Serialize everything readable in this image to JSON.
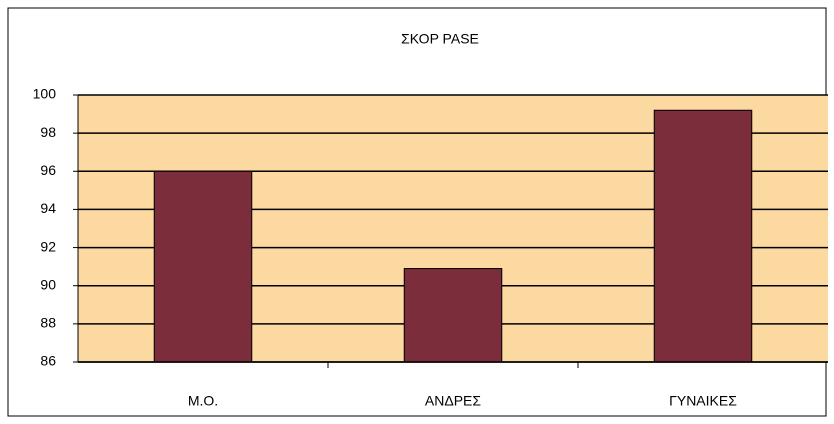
{
  "chart_data": {
    "type": "bar",
    "title": "ΣΚΟΡ PASE",
    "categories": [
      "M.O.",
      "ΑΝΔΡΕΣ",
      "ΓΥΝΑΙΚΕΣ"
    ],
    "values": [
      96,
      90.9,
      99.2
    ],
    "color": "#7b2d3b",
    "ylim": [
      86,
      100
    ],
    "yticks": [
      86,
      88,
      90,
      92,
      94,
      96,
      98,
      100
    ],
    "grid": true,
    "plot_background": "#fcd9a0"
  }
}
